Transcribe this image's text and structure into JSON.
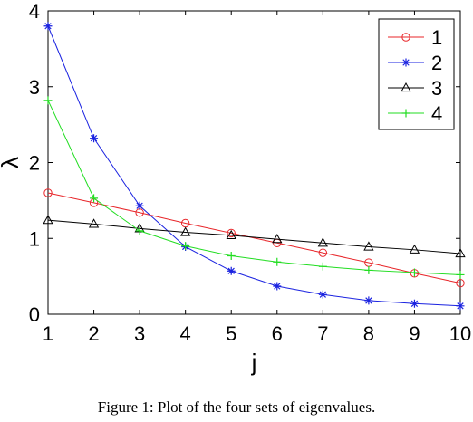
{
  "caption": "Figure 1: Plot of the four sets of eigenvalues.",
  "chart_data": {
    "type": "line",
    "xlabel": "j",
    "ylabel": "λ",
    "xlim": [
      1,
      10
    ],
    "ylim": [
      0,
      4
    ],
    "xticks": [
      1,
      2,
      3,
      4,
      5,
      6,
      7,
      8,
      9,
      10
    ],
    "yticks": [
      0,
      1,
      2,
      3,
      4
    ],
    "grid": false,
    "legend_position": "top-right",
    "x": [
      1,
      2,
      3,
      4,
      5,
      6,
      7,
      8,
      9,
      10
    ],
    "series": [
      {
        "name": "1",
        "color": "#e8262a",
        "marker": "circle",
        "values": [
          1.6,
          1.47,
          1.34,
          1.2,
          1.07,
          0.94,
          0.81,
          0.68,
          0.54,
          0.41
        ]
      },
      {
        "name": "2",
        "color": "#1a22e0",
        "marker": "asterisk",
        "values": [
          3.8,
          2.32,
          1.43,
          0.89,
          0.57,
          0.37,
          0.26,
          0.18,
          0.14,
          0.11
        ]
      },
      {
        "name": "3",
        "color": "#000000",
        "marker": "triangle",
        "values": [
          1.24,
          1.19,
          1.13,
          1.08,
          1.04,
          0.99,
          0.94,
          0.89,
          0.85,
          0.8
        ]
      },
      {
        "name": "4",
        "color": "#22dd22",
        "marker": "plus",
        "values": [
          2.82,
          1.53,
          1.1,
          0.9,
          0.77,
          0.69,
          0.63,
          0.58,
          0.55,
          0.52
        ]
      }
    ]
  }
}
